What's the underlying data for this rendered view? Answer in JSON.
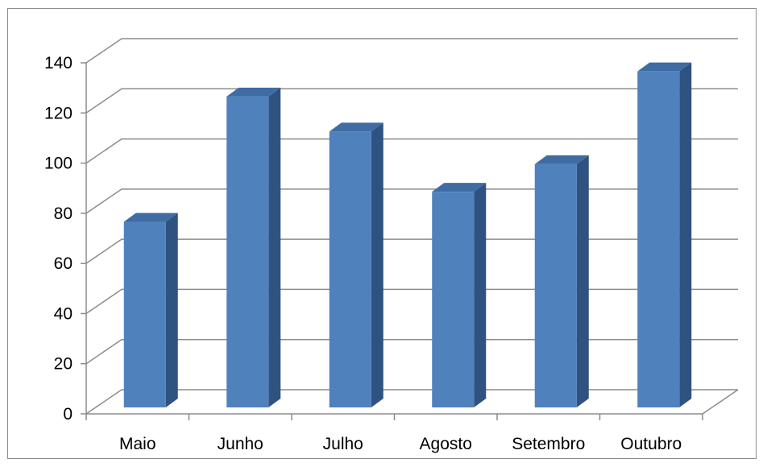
{
  "chart_data": {
    "type": "bar",
    "style": "3d-column",
    "categories": [
      "Maio",
      "Junho",
      "Julho",
      "Agosto",
      "Setembro",
      "Outubro"
    ],
    "values": [
      74,
      124,
      110,
      86,
      97,
      134
    ],
    "title": "",
    "xlabel": "",
    "ylabel": "",
    "ylim": [
      0,
      140
    ],
    "yticks": [
      0,
      20,
      40,
      60,
      80,
      100,
      120,
      140
    ],
    "grid": true,
    "legend": "none",
    "colors": {
      "front": "#4f81bd",
      "side": "#2f5280",
      "top": "#3e6ca3",
      "grid": "#8c8c8c"
    }
  }
}
